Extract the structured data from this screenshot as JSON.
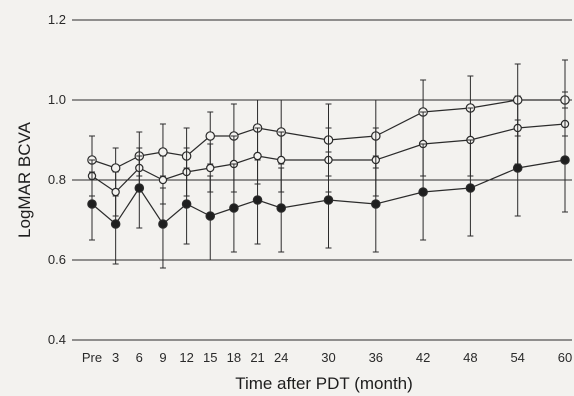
{
  "chart_data": {
    "type": "line",
    "xlabel": "Time after PDT (month)",
    "ylabel": "LogMAR BCVA",
    "categories": [
      "Pre",
      "3",
      "6",
      "9",
      "12",
      "15",
      "18",
      "21",
      "24",
      "30",
      "36",
      "42",
      "48",
      "54",
      "60"
    ],
    "x_months": [
      0,
      3,
      6,
      9,
      12,
      15,
      18,
      21,
      24,
      30,
      36,
      42,
      48,
      54,
      60
    ],
    "ylim": [
      0.4,
      1.2
    ],
    "yticks": [
      "0.4",
      "0.6",
      "0.8",
      "1.0",
      "1.2"
    ],
    "ytick_values": [
      0.4,
      0.6,
      0.8,
      1.0,
      1.2
    ],
    "grid": "horizontal",
    "series": [
      {
        "marker": "open-circle",
        "values": [
          0.85,
          0.83,
          0.86,
          0.87,
          0.86,
          0.91,
          0.91,
          0.93,
          0.92,
          0.9,
          0.91,
          0.97,
          0.98,
          1.0,
          1.0
        ],
        "upper": [
          0.91,
          0.88,
          0.92,
          0.94,
          0.93,
          0.97,
          0.99,
          1.0,
          1.0,
          0.99,
          1.0,
          1.05,
          1.06,
          1.09,
          1.1
        ],
        "lower": [
          0.8,
          0.77,
          0.81,
          0.81,
          0.8,
          0.84,
          0.84,
          0.85,
          0.84,
          0.81,
          0.83,
          0.89,
          0.9,
          0.91,
          0.91
        ]
      },
      {
        "marker": "open-circle-small",
        "values": [
          0.81,
          0.77,
          0.83,
          0.8,
          0.82,
          0.83,
          0.84,
          0.86,
          0.85,
          0.85,
          0.85,
          0.89,
          0.9,
          0.93,
          0.94
        ],
        "upper": [
          0.85,
          0.82,
          0.88,
          0.86,
          0.88,
          0.89,
          0.91,
          0.93,
          0.92,
          0.93,
          0.93,
          0.97,
          0.98,
          1.01,
          1.02
        ],
        "lower": [
          0.76,
          0.71,
          0.77,
          0.74,
          0.76,
          0.77,
          0.77,
          0.79,
          0.77,
          0.77,
          0.76,
          0.81,
          0.81,
          0.84,
          0.85
        ]
      },
      {
        "marker": "filled-circle",
        "values": [
          0.74,
          0.69,
          0.78,
          0.69,
          0.74,
          0.71,
          0.73,
          0.75,
          0.73,
          0.75,
          0.74,
          0.77,
          0.78,
          0.83,
          0.85
        ],
        "upper": [
          0.82,
          0.76,
          0.86,
          0.78,
          0.83,
          0.81,
          0.84,
          0.85,
          0.83,
          0.87,
          0.86,
          0.89,
          0.9,
          0.95,
          0.98
        ],
        "lower": [
          0.65,
          0.59,
          0.68,
          0.58,
          0.64,
          0.6,
          0.62,
          0.64,
          0.62,
          0.63,
          0.62,
          0.65,
          0.66,
          0.71,
          0.72
        ]
      }
    ],
    "colors": {
      "line": "#2b2b2b",
      "grid": "#2b2b2b",
      "marker_fill": "#f3f2ef",
      "marker_filled": "#1f1f1f",
      "text": "#2a2a2a"
    }
  }
}
